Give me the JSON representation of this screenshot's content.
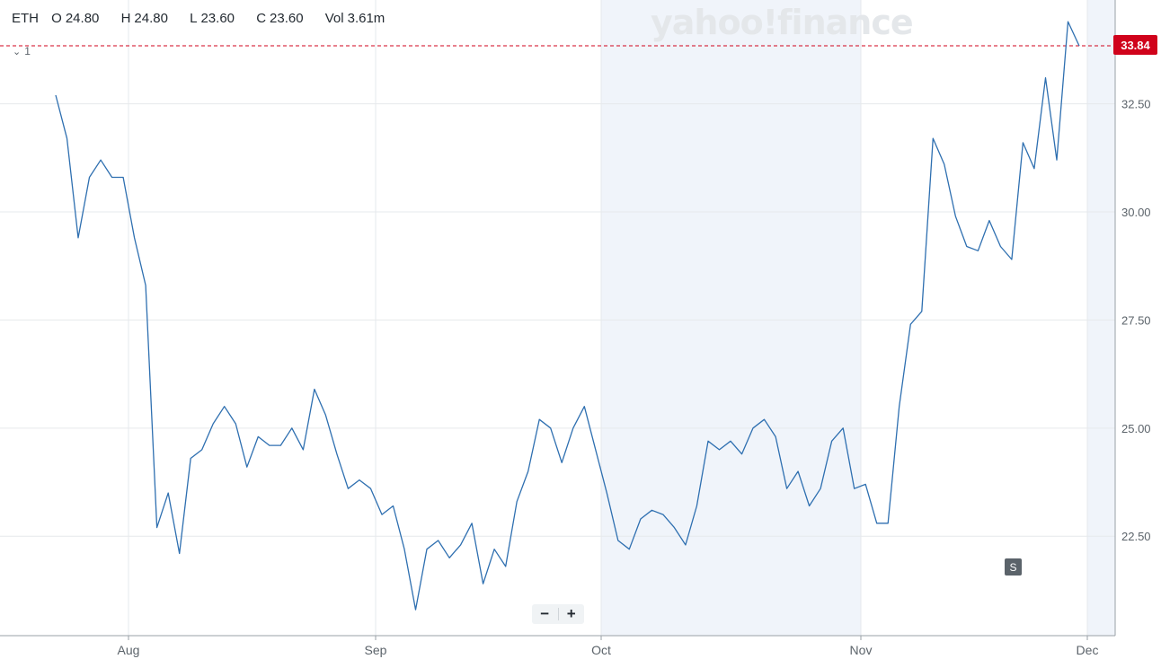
{
  "header": {
    "symbol": "ETH",
    "open_label": "O",
    "open_value": "24.80",
    "high_label": "H",
    "high_value": "24.80",
    "low_label": "L",
    "low_value": "23.60",
    "close_label": "C",
    "close_value": "23.60",
    "vol_label": "Vol",
    "vol_value": "3.61m"
  },
  "indicator_toggle": {
    "icon": "chevron-down-icon",
    "count": "1"
  },
  "watermark": "yahoo!finance",
  "zoom": {
    "minus": "−",
    "plus": "+"
  },
  "split_marker": "S",
  "last_price_label": "33.84",
  "colors": {
    "line": "#2e6fb0",
    "last_price": "#d0021b",
    "shade": "#f0f4fa",
    "grid": "#e6e9ec",
    "axis_text": "#5b636a"
  },
  "chart_data": {
    "type": "line",
    "title": "",
    "xlabel": "",
    "ylabel": "",
    "x_ticks": [
      "Aug",
      "Sep",
      "Oct",
      "Nov",
      "Dec"
    ],
    "y_ticks": [
      "22.50",
      "25.00",
      "27.50",
      "30.00",
      "32.50"
    ],
    "ylim": [
      20.2,
      34.9
    ],
    "grid": true,
    "shaded_region": [
      "Oct",
      "Nov"
    ],
    "last_price": 33.84,
    "series": [
      {
        "values": [
          32.7,
          31.7,
          29.4,
          30.8,
          31.2,
          30.8,
          30.8,
          29.4,
          28.3,
          22.7,
          23.5,
          22.1,
          24.3,
          24.5,
          25.1,
          25.5,
          25.1,
          24.1,
          24.8,
          24.6,
          24.6,
          25.0,
          24.5,
          25.9,
          25.3,
          24.4,
          23.6,
          23.8,
          23.6,
          23.0,
          23.2,
          22.2,
          20.8,
          22.2,
          22.4,
          22.0,
          22.3,
          22.8,
          21.4,
          22.2,
          21.8,
          23.3,
          24.0,
          25.2,
          25.0,
          24.2,
          25.0,
          25.5,
          24.5,
          23.5,
          22.4,
          22.2,
          22.9,
          23.1,
          23.0,
          22.7,
          22.3,
          23.2,
          24.7,
          24.5,
          24.7,
          24.4,
          25.0,
          25.2,
          24.8,
          23.6,
          24.0,
          23.2,
          23.6,
          24.7,
          25.0,
          23.6,
          23.7,
          22.8,
          22.8,
          25.5,
          27.4,
          27.7,
          31.7,
          31.1,
          29.9,
          29.2,
          29.1,
          29.8,
          29.2,
          28.9,
          31.6,
          31.0,
          33.1,
          31.2,
          34.4,
          33.84
        ]
      }
    ]
  }
}
